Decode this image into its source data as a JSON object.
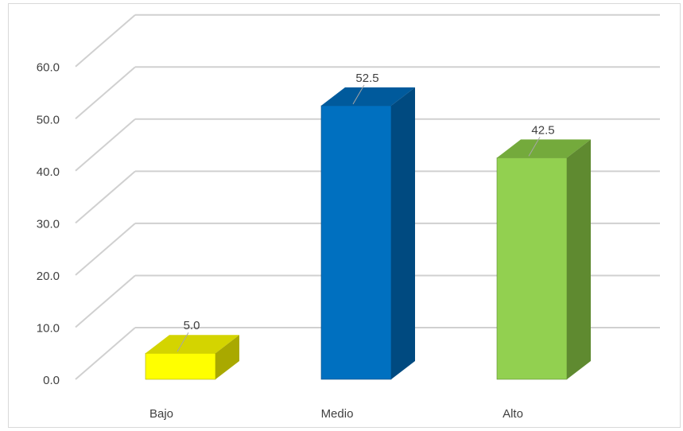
{
  "chart_data": {
    "type": "bar",
    "style": "3d-column",
    "categories": [
      "Bajo",
      "Medio",
      "Alto"
    ],
    "values": [
      5.0,
      52.5,
      42.5
    ],
    "data_labels": [
      "5.0",
      "52.5",
      "42.5"
    ],
    "title": "",
    "xlabel": "",
    "ylabel": "",
    "ylim": [
      0,
      60
    ],
    "y_ticks": [
      "0.0",
      "10.0",
      "20.0",
      "30.0",
      "40.0",
      "50.0",
      "60.0"
    ],
    "grid": true,
    "legend": "none",
    "colors": {
      "Bajo": {
        "front": "#ffff00",
        "top": "#d4d400",
        "side": "#a9a900"
      },
      "Medio": {
        "front": "#0070c0",
        "top": "#005a9c",
        "side": "#004a80"
      },
      "Alto": {
        "front": "#92d050",
        "top": "#74aa3c",
        "side": "#5f8a30"
      },
      "grid": "#d0d0d0"
    }
  }
}
